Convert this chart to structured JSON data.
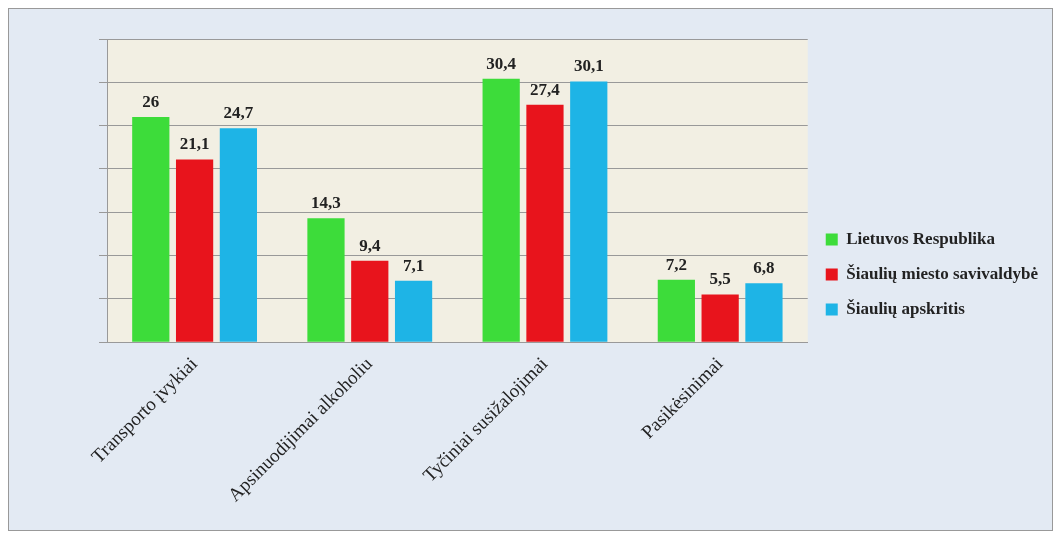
{
  "chart_data": {
    "type": "bar",
    "categories": [
      "Transporto įvykiai",
      "Apsinuodijimai alkoholiu",
      "Tyčiniai susižalojimai",
      "Pasikėsinimai"
    ],
    "series": [
      {
        "name": "Lietuvos Respublika",
        "color": "#3ddc3a",
        "values": [
          26,
          14.3,
          30.4,
          7.2
        ],
        "value_labels": [
          "26",
          "14,3",
          "30,4",
          "7,2"
        ]
      },
      {
        "name": "Šiaulių miesto savivaldybė",
        "color": "#e8141c",
        "values": [
          21.1,
          9.4,
          27.4,
          5.5
        ],
        "value_labels": [
          "21,1",
          "9,4",
          "27,4",
          "5,5"
        ]
      },
      {
        "name": "Šiaulių apskritis",
        "color": "#1eb4e6",
        "values": [
          24.7,
          7.1,
          30.1,
          6.8
        ],
        "value_labels": [
          "24,7",
          "7,1",
          "30,1",
          "6,8"
        ]
      }
    ],
    "ylim": [
      0,
      35
    ],
    "yticks": [
      {
        "value": 0,
        "label": null
      },
      {
        "value": 5,
        "label": null
      },
      {
        "value": 10,
        "label": null
      },
      {
        "value": 15,
        "label": null
      },
      {
        "value": 20,
        "label": null
      },
      {
        "value": 25,
        "label": null
      },
      {
        "value": 30,
        "label": null
      },
      {
        "value": 35,
        "label": null
      }
    ],
    "tick_labels": "x",
    "grid": "y",
    "legend": "right"
  }
}
